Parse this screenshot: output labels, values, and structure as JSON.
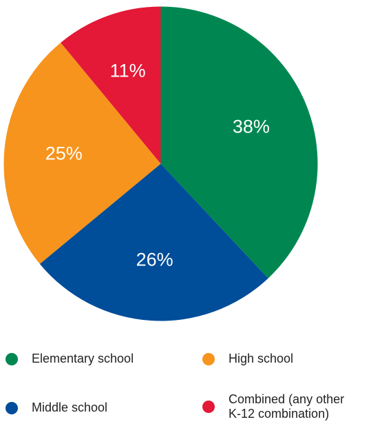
{
  "chart_data": {
    "type": "pie",
    "title": "",
    "categories": [
      "Elementary school",
      "Middle school",
      "High school",
      "Combined (any other\nK-12 combination)"
    ],
    "values": [
      38,
      26,
      25,
      11
    ],
    "labels": [
      "38%",
      "26%",
      "25%",
      "11%"
    ],
    "colors": [
      "#008751",
      "#004d99",
      "#f7941d",
      "#e31937"
    ],
    "start": "12 o'clock",
    "direction": "clockwise",
    "legend_position": "bottom"
  },
  "legend": [
    {
      "label": "Elementary school",
      "color": "#008751"
    },
    {
      "label": "High school",
      "color": "#f7941d"
    },
    {
      "label": "Middle school",
      "color": "#004d99"
    },
    {
      "label": "Combined (any other\nK-12 combination)",
      "color": "#e31937"
    }
  ]
}
